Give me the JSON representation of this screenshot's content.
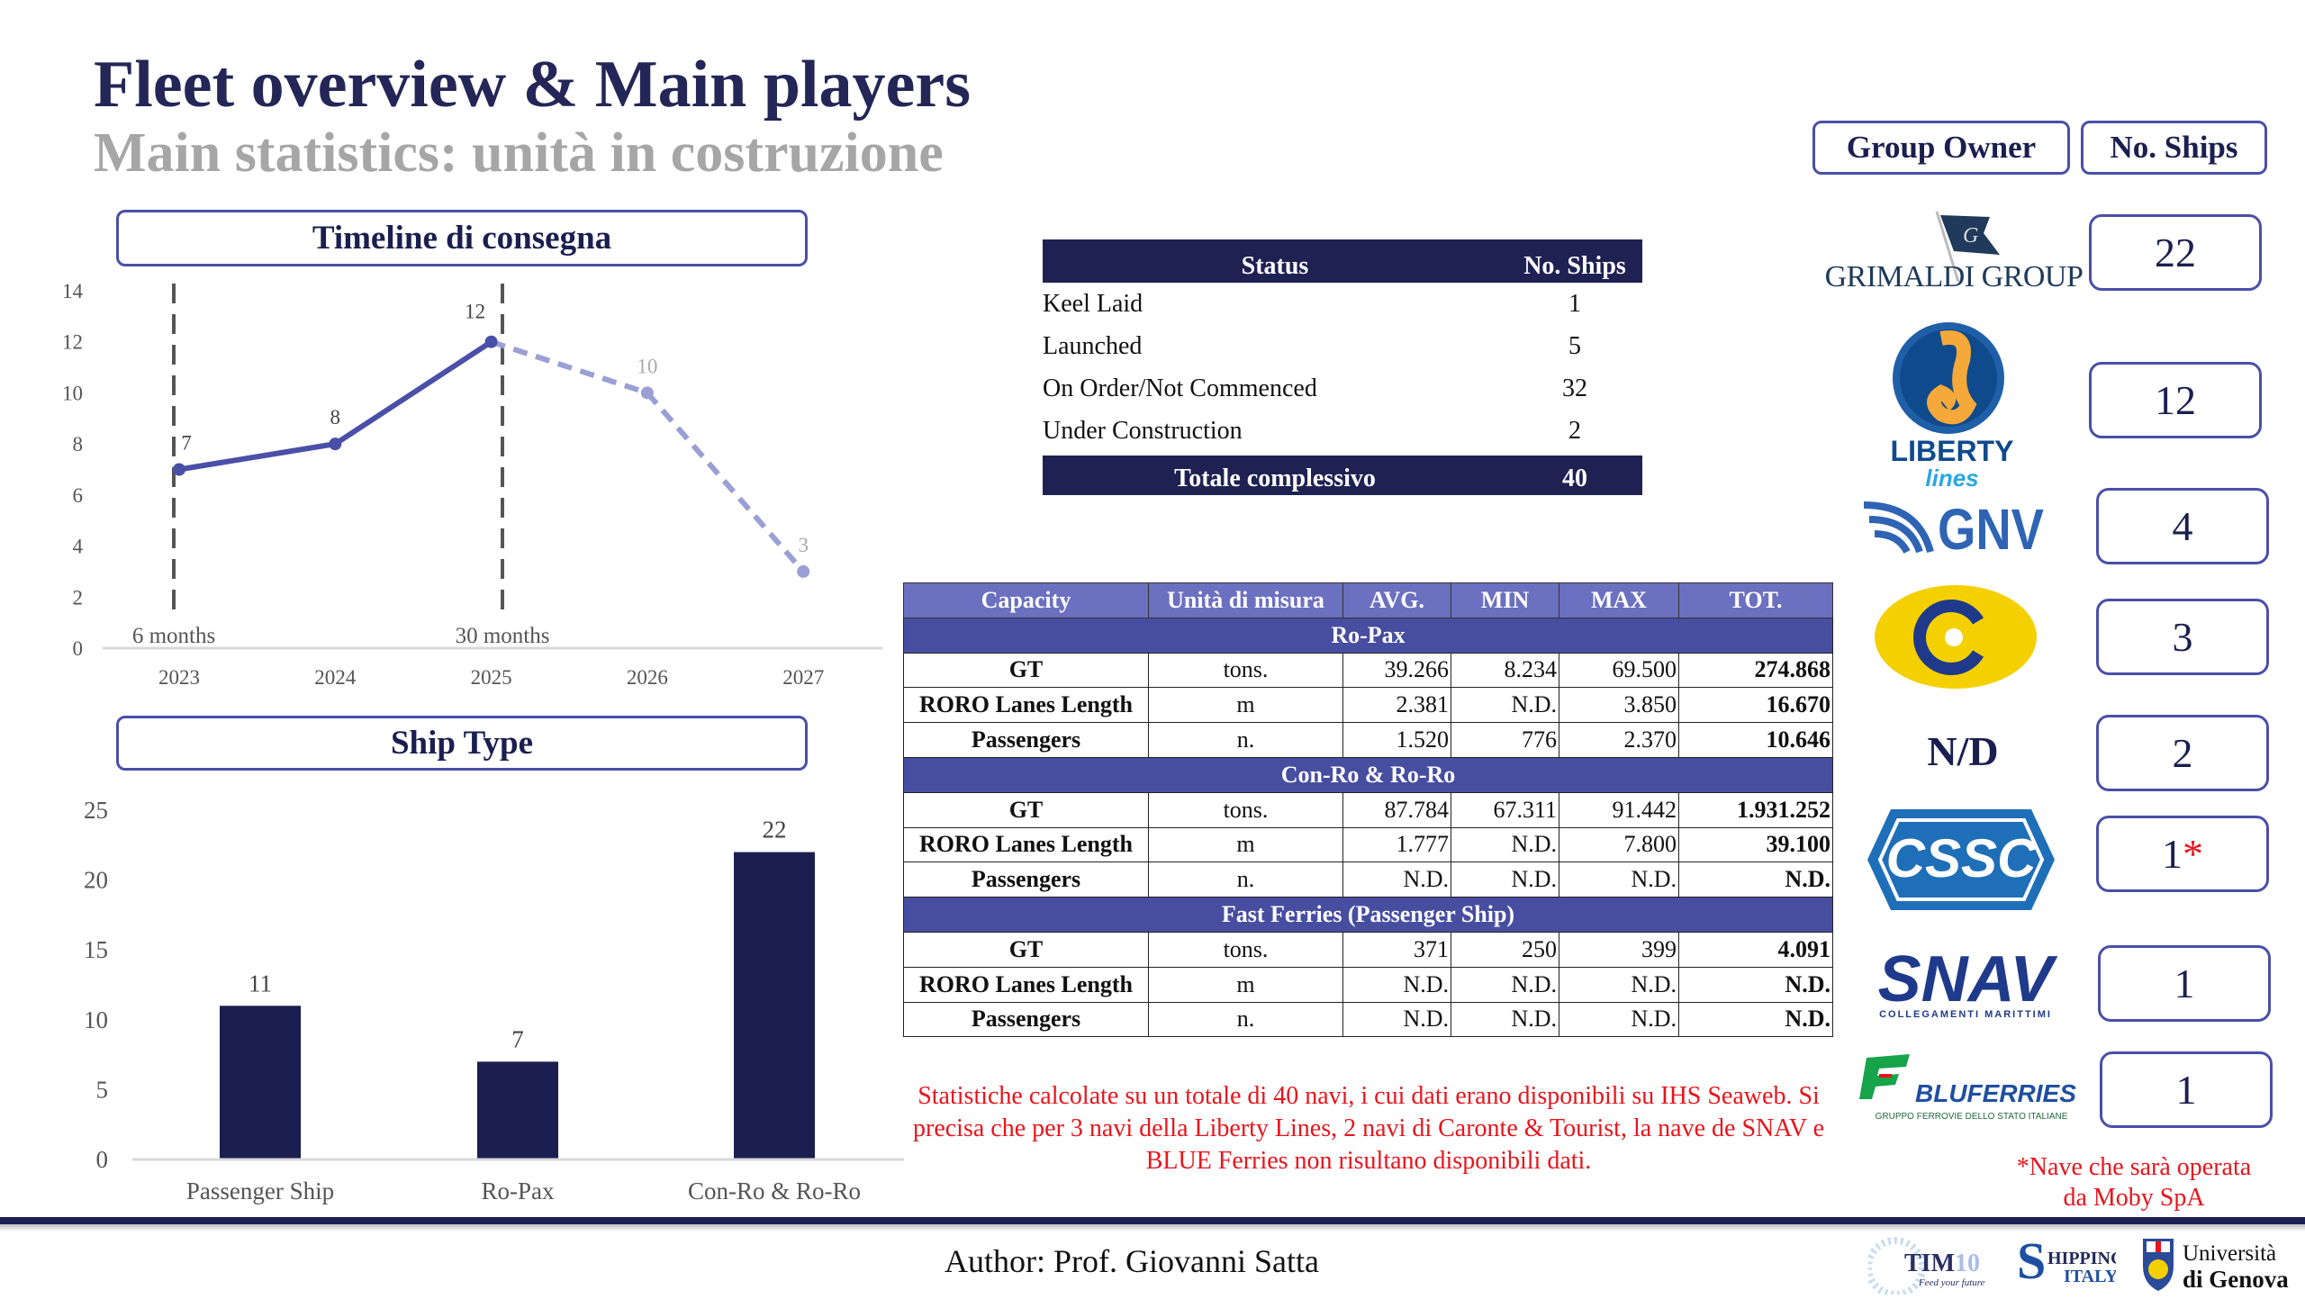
{
  "header": {
    "title": "Fleet overview & Main players",
    "subtitle": "Main statistics: unità in costruzione"
  },
  "timeline": {
    "box_title": "Timeline di consegna"
  },
  "shiptype": {
    "box_title": "Ship Type"
  },
  "chart_data": [
    {
      "type": "line",
      "title": "Timeline di consegna",
      "categories": [
        "2023",
        "2024",
        "2025",
        "2026",
        "2027"
      ],
      "values": [
        7,
        8,
        12,
        10,
        3
      ],
      "actual_until": "2025",
      "forecast_from": "2025",
      "ylim": [
        0,
        14
      ],
      "yticks": [
        0,
        2,
        4,
        6,
        8,
        10,
        12,
        14
      ],
      "annotations": [
        {
          "x": "2023",
          "label": "6 months"
        },
        {
          "x": "2025",
          "label": "30 months"
        }
      ],
      "colors": {
        "actual": "#4a4fa8",
        "forecast": "#9a9fd4"
      },
      "grid": false
    },
    {
      "type": "bar",
      "title": "Ship Type",
      "categories": [
        "Passenger Ship",
        "Ro-Pax",
        "Con-Ro & Ro-Ro"
      ],
      "values": [
        11,
        7,
        22
      ],
      "ylim": [
        0,
        25
      ],
      "yticks": [
        0,
        5,
        10,
        15,
        20,
        25
      ],
      "color": "#1b1f4f",
      "grid": false
    }
  ],
  "status_table": {
    "headers": [
      "Status",
      "No. Ships"
    ],
    "rows": [
      [
        "Keel Laid",
        "1"
      ],
      [
        "Launched",
        "5"
      ],
      [
        "On Order/Not Commenced",
        "32"
      ],
      [
        "Under Construction",
        "2"
      ]
    ],
    "total": [
      "Totale complessivo",
      "40"
    ]
  },
  "capacity_table": {
    "headers": [
      "Capacity",
      "Unità di misura",
      "AVG.",
      "MIN",
      "MAX",
      "TOT."
    ],
    "sections": [
      {
        "name": "Ro-Pax",
        "rows": [
          [
            "GT",
            "tons.",
            "39.266",
            "8.234",
            "69.500",
            "274.868"
          ],
          [
            "RORO Lanes Length",
            "m",
            "2.381",
            "N.D.",
            "3.850",
            "16.670"
          ],
          [
            "Passengers",
            "n.",
            "1.520",
            "776",
            "2.370",
            "10.646"
          ]
        ]
      },
      {
        "name": "Con-Ro & Ro-Ro",
        "rows": [
          [
            "GT",
            "tons.",
            "87.784",
            "67.311",
            "91.442",
            "1.931.252"
          ],
          [
            "RORO Lanes Length",
            "m",
            "1.777",
            "N.D.",
            "7.800",
            "39.100"
          ],
          [
            "Passengers",
            "n.",
            "N.D.",
            "N.D.",
            "N.D.",
            "N.D."
          ]
        ]
      },
      {
        "name": "Fast Ferries (Passenger Ship)",
        "rows": [
          [
            "GT",
            "tons.",
            "371",
            "250",
            "399",
            "4.091"
          ],
          [
            "RORO Lanes Length",
            "m",
            "N.D.",
            "N.D.",
            "N.D.",
            "N.D."
          ],
          [
            "Passengers",
            "n.",
            "N.D.",
            "N.D.",
            "N.D.",
            "N.D."
          ]
        ]
      }
    ]
  },
  "note": "Statistiche calcolate su un totale di 40 navi, i cui dati erano disponibili su IHS Seaweb. Si precisa che per 3 navi della Liberty Lines, 2 navi di Caronte & Tourist, la nave de SNAV e BLUE Ferries non risultano disponibili dati.",
  "owners": {
    "header_owner": "Group Owner",
    "header_ships": "No. Ships",
    "items": [
      {
        "name": "GRIMALDI GROUP",
        "ships": "22"
      },
      {
        "name": "LIBERTY lines",
        "logo_a": "LIBERTY",
        "logo_b": "lines",
        "ships": "12"
      },
      {
        "name": "GNV",
        "ships": "4"
      },
      {
        "name": "Caronte & Tourist",
        "ships": "3"
      },
      {
        "name": "N/D",
        "ships": "2"
      },
      {
        "name": "CSSC",
        "ships": "1",
        "star": "*"
      },
      {
        "name": "SNAV",
        "sub": "COLLEGAMENTI MARITTIMI",
        "ships": "1"
      },
      {
        "name": "BLUFERRIES",
        "sub": "GRUPPO FERROVIE DELLO STATO ITALIANE",
        "ships": "1"
      }
    ],
    "footnote_1": "*Nave che sarà operata",
    "footnote_2": "da Moby SpA"
  },
  "footer": {
    "author": "Author: Prof. Giovanni Satta",
    "logos": [
      "TIM10 s.r.l Feed your future",
      "SHIPPING ITALY",
      "Università di Genova"
    ]
  }
}
